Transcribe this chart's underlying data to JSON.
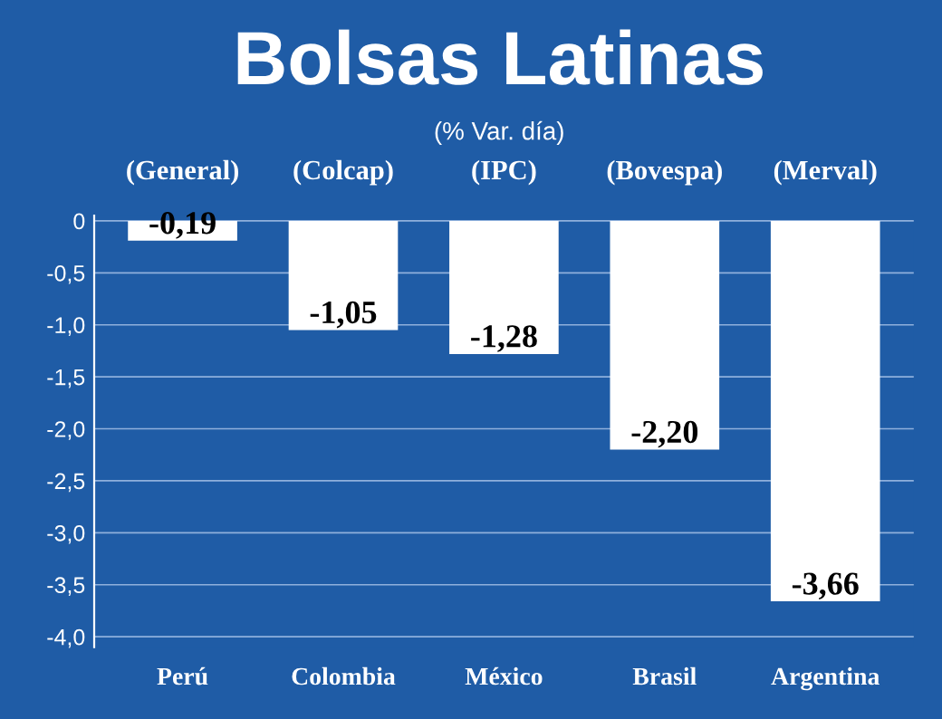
{
  "chart_data": {
    "type": "bar",
    "title": "Bolsas Latinas",
    "subtitle": "(% Var. día)",
    "categories": [
      "Perú",
      "Colombia",
      "México",
      "Brasil",
      "Argentina"
    ],
    "values": [
      -0.19,
      -1.05,
      -1.28,
      -2.2,
      -3.66
    ],
    "value_labels": [
      "-0,19",
      "-1,05",
      "-1,28",
      "-2,20",
      "-3,66"
    ],
    "color": "#ffffff",
    "annotations": [
      "(General)",
      "(Colcap)",
      "(IPC)",
      "(Bovespa)",
      "(Merval)"
    ],
    "ylim": [
      -4.1,
      0.05
    ],
    "yticks": [
      0,
      {
        "value": -0.5,
        "label": "-0,5"
      },
      {
        "value": -1.0,
        "label": "-1,0"
      },
      {
        "value": -1.5,
        "label": "-1,5"
      },
      {
        "value": -2.0,
        "label": "-2,0"
      },
      {
        "value": -2.5,
        "label": "-2,5"
      },
      {
        "value": -3.0,
        "label": "-3,0"
      },
      {
        "value": -3.5,
        "label": "-3,5"
      },
      {
        "value": -4.0,
        "label": "-4,0"
      }
    ],
    "grid": "y"
  }
}
